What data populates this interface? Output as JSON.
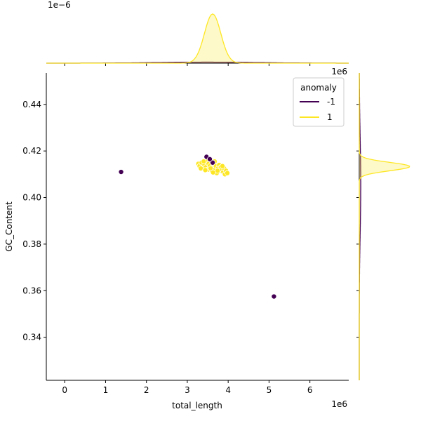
{
  "chart_data": {
    "type": "scatter",
    "subtype": "jointplot",
    "xlabel": "total_length",
    "ylabel": "GC_Content",
    "x_offset_label": "1e6",
    "y_offset_label": "",
    "xlim": [
      -0.45,
      6.95
    ],
    "ylim": [
      0.3215,
      0.4535
    ],
    "x_ticks": [
      0,
      1,
      2,
      3,
      4,
      5,
      6
    ],
    "y_ticks": [
      0.34,
      0.36,
      0.38,
      0.4,
      0.42,
      0.44
    ],
    "x_tick_labels": [
      "0",
      "1",
      "2",
      "3",
      "4",
      "5",
      "6"
    ],
    "y_tick_labels": [
      "0.34",
      "0.36",
      "0.38",
      "0.40",
      "0.42",
      "0.44"
    ],
    "grid": false,
    "legend": {
      "title": "anomaly",
      "location": "top-right",
      "entries": [
        {
          "label": "-1",
          "color": "#440154"
        },
        {
          "label": "1",
          "color": "#fde725"
        }
      ]
    },
    "series": [
      {
        "name": "-1",
        "color": "#440154",
        "points": [
          [
            1.38,
            0.411
          ],
          [
            5.12,
            0.3575
          ],
          [
            3.47,
            0.4175
          ],
          [
            3.62,
            0.415
          ],
          [
            3.55,
            0.4165
          ]
        ]
      },
      {
        "name": "1",
        "color": "#fde725",
        "points": [
          [
            3.27,
            0.4145
          ],
          [
            3.3,
            0.4135
          ],
          [
            3.35,
            0.415
          ],
          [
            3.38,
            0.4125
          ],
          [
            3.42,
            0.414
          ],
          [
            3.45,
            0.413
          ],
          [
            3.48,
            0.4155
          ],
          [
            3.5,
            0.412
          ],
          [
            3.52,
            0.4145
          ],
          [
            3.55,
            0.4135
          ],
          [
            3.58,
            0.416
          ],
          [
            3.6,
            0.4115
          ],
          [
            3.62,
            0.413
          ],
          [
            3.65,
            0.4145
          ],
          [
            3.68,
            0.412
          ],
          [
            3.7,
            0.4135
          ],
          [
            3.72,
            0.4105
          ],
          [
            3.75,
            0.4125
          ],
          [
            3.78,
            0.414
          ],
          [
            3.8,
            0.4115
          ],
          [
            3.82,
            0.413
          ],
          [
            3.85,
            0.412
          ],
          [
            3.88,
            0.411
          ],
          [
            3.9,
            0.4125
          ],
          [
            3.92,
            0.41
          ],
          [
            3.95,
            0.4115
          ],
          [
            3.98,
            0.4105
          ],
          [
            3.33,
            0.4125
          ],
          [
            3.4,
            0.4155
          ],
          [
            3.57,
            0.4125
          ],
          [
            3.67,
            0.4155
          ],
          [
            3.74,
            0.4115
          ],
          [
            3.86,
            0.4135
          ],
          [
            3.44,
            0.4118
          ],
          [
            3.63,
            0.4108
          ]
        ]
      }
    ],
    "marginal_x": {
      "offset_label": "1e−6",
      "max_density": 7.6e-07,
      "curves": [
        {
          "name": "1",
          "color": "#fde725",
          "peak_x": 3.62,
          "sigma": 0.2,
          "peak": 7.2e-07
        },
        {
          "name": "-1",
          "color": "#440154",
          "peak_x": 3.5,
          "sigma": 1.2,
          "peak": 1.5e-08
        }
      ]
    },
    "marginal_y": {
      "curves": [
        {
          "name": "1",
          "color": "#fde725",
          "peak_y": 0.4133,
          "sigma": 0.0018,
          "peak": 1.0
        },
        {
          "name": "-1",
          "color": "#440154",
          "peak_y": 0.405,
          "sigma": 0.02,
          "peak": 0.03
        }
      ]
    }
  }
}
